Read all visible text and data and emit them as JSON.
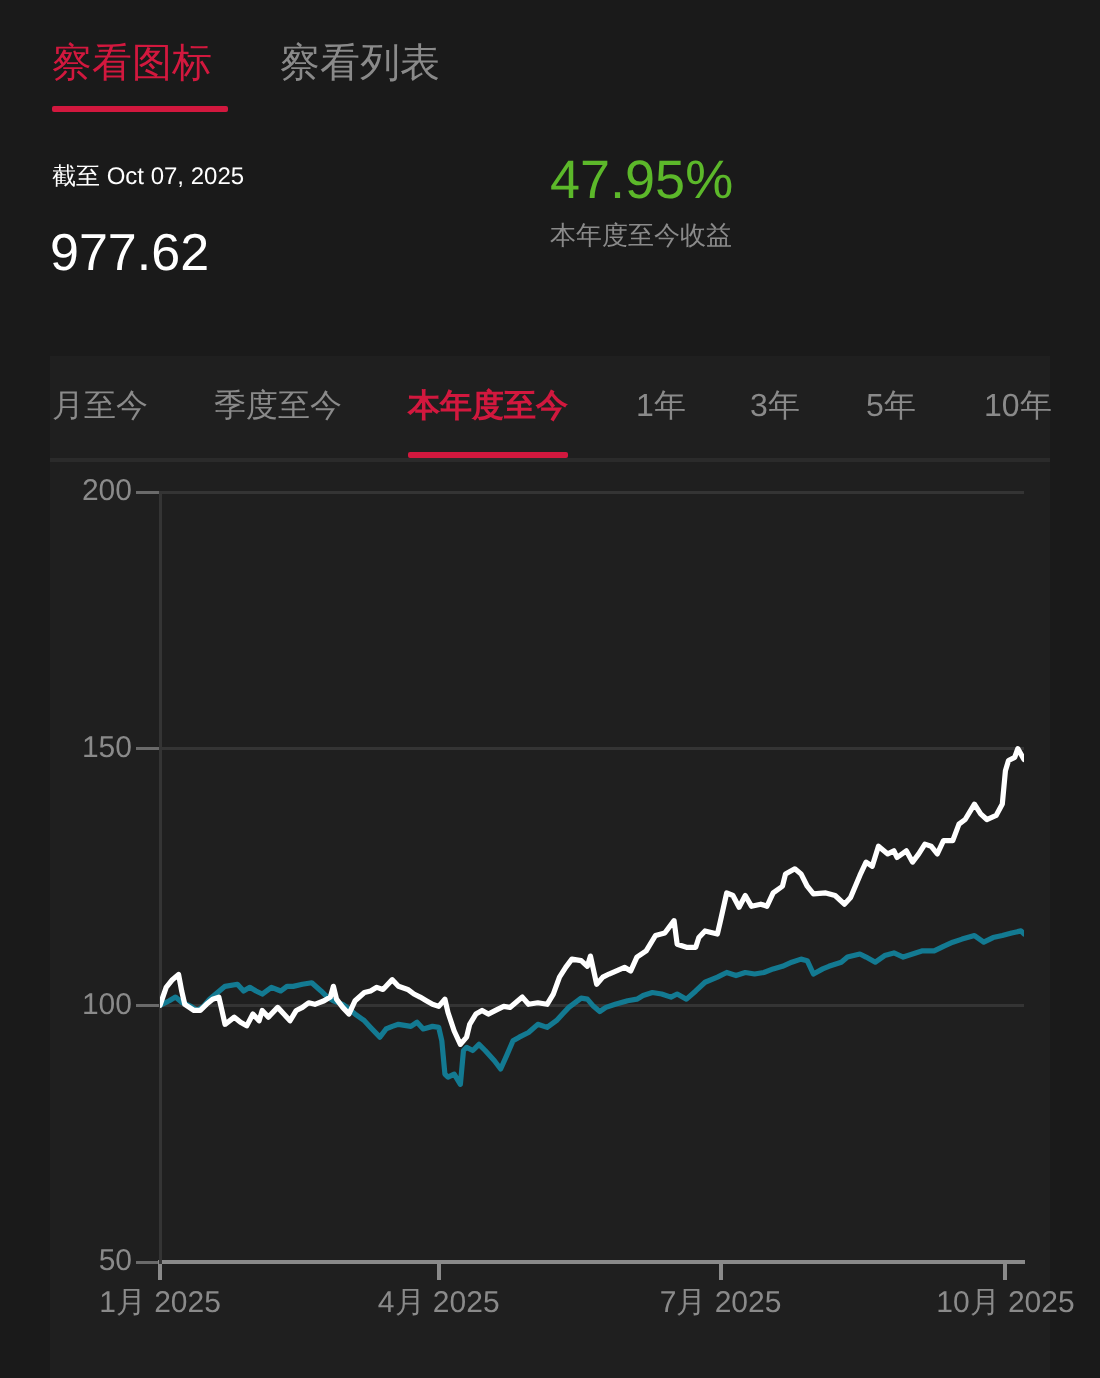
{
  "chart_data": {
    "type": "line",
    "annotations": [
      "察看图标",
      "察看列表",
      "截至 Oct 07, 2025",
      "977.62",
      "47.95%",
      "本年度至今收益",
      "月至今",
      "季度至今",
      "本年度至今",
      "1年",
      "3年",
      "5年",
      "10年"
    ],
    "xlim": [
      "2025-01-01",
      "2025-10-07"
    ],
    "xticks": [
      {
        "value": "2025-01-01",
        "label": "1月 2025"
      },
      {
        "value": "2025-04-01",
        "label": "4月 2025"
      },
      {
        "value": "2025-07-01",
        "label": "7月 2025"
      },
      {
        "value": "2025-10-01",
        "label": "10月 2025"
      }
    ],
    "ylim": [
      50,
      200
    ],
    "yticks": [
      50,
      100,
      150,
      200
    ],
    "grid": "y",
    "series": [
      {
        "color": "#ffffff",
        "x": [
          "2025-01-01",
          "2025-01-03",
          "2025-01-05",
          "2025-01-07",
          "2025-01-08",
          "2025-01-09",
          "2025-01-12",
          "2025-01-14",
          "2025-01-16",
          "2025-01-18",
          "2025-01-20",
          "2025-01-21",
          "2025-01-22",
          "2025-01-25",
          "2025-01-27",
          "2025-01-29",
          "2025-01-31",
          "2025-02-02",
          "2025-02-03",
          "2025-02-05",
          "2025-02-08",
          "2025-02-10",
          "2025-02-12",
          "2025-02-14",
          "2025-02-16",
          "2025-02-18",
          "2025-02-20",
          "2025-02-23",
          "2025-02-25",
          "2025-02-26",
          "2025-02-27",
          "2025-03-01",
          "2025-03-03",
          "2025-03-05",
          "2025-03-08",
          "2025-03-10",
          "2025-03-12",
          "2025-03-14",
          "2025-03-17",
          "2025-03-19",
          "2025-03-22",
          "2025-03-24",
          "2025-03-26",
          "2025-03-28",
          "2025-03-30",
          "2025-04-01",
          "2025-04-03",
          "2025-04-04",
          "2025-04-06",
          "2025-04-08",
          "2025-04-10",
          "2025-04-11",
          "2025-04-13",
          "2025-04-15",
          "2025-04-17",
          "2025-04-20",
          "2025-04-22",
          "2025-04-24",
          "2025-04-26",
          "2025-04-28",
          "2025-04-30",
          "2025-05-03",
          "2025-05-06",
          "2025-05-08",
          "2025-05-10",
          "2025-05-12",
          "2025-05-14",
          "2025-05-17",
          "2025-05-19",
          "2025-05-20",
          "2025-05-22",
          "2025-05-24",
          "2025-05-26",
          "2025-05-31",
          "2025-06-02",
          "2025-06-04",
          "2025-06-07",
          "2025-06-10",
          "2025-06-13",
          "2025-06-16",
          "2025-06-17",
          "2025-06-20",
          "2025-06-23",
          "2025-06-24",
          "2025-06-26",
          "2025-06-30",
          "2025-07-01",
          "2025-07-03",
          "2025-07-05",
          "2025-07-07",
          "2025-07-09",
          "2025-07-11",
          "2025-07-14",
          "2025-07-16",
          "2025-07-18",
          "2025-07-21",
          "2025-07-22",
          "2025-07-25",
          "2025-07-27",
          "2025-07-29",
          "2025-07-31",
          "2025-08-04",
          "2025-08-07",
          "2025-08-10",
          "2025-08-12",
          "2025-08-15",
          "2025-08-17",
          "2025-08-19",
          "2025-08-21",
          "2025-08-24",
          "2025-08-26",
          "2025-08-27",
          "2025-08-30",
          "2025-09-01",
          "2025-09-03",
          "2025-09-05",
          "2025-09-07",
          "2025-09-09",
          "2025-09-11",
          "2025-09-14",
          "2025-09-16",
          "2025-09-18",
          "2025-09-21",
          "2025-09-23",
          "2025-09-25",
          "2025-09-28",
          "2025-09-30",
          "2025-10-01",
          "2025-10-02",
          "2025-10-04",
          "2025-10-05",
          "2025-10-07"
        ],
        "values": [
          100,
          103.5,
          105,
          106,
          102.8,
          100.2,
          99,
          99,
          100.2,
          101.2,
          101.6,
          99,
          96.3,
          97.7,
          96.7,
          96,
          98.3,
          97,
          99,
          97.7,
          99.6,
          98.3,
          97,
          99,
          99.6,
          100.5,
          100.2,
          100.9,
          101.6,
          103.7,
          101.2,
          99.6,
          98.3,
          100.9,
          102.5,
          102.8,
          103.5,
          103.1,
          105,
          103.7,
          103.1,
          102.2,
          101.6,
          100.9,
          100.2,
          99.8,
          101.2,
          98.6,
          95,
          92.4,
          93.8,
          96.3,
          98.3,
          99,
          98.3,
          99.2,
          99.8,
          99.6,
          100.6,
          101.6,
          100.2,
          100.5,
          100.2,
          102.2,
          105.5,
          107.4,
          109,
          108.7,
          107.6,
          109.6,
          104.1,
          105.5,
          106.1,
          107.4,
          106.7,
          109.4,
          110.6,
          113.6,
          114.1,
          116.5,
          111.9,
          111.3,
          111.3,
          113.2,
          114.5,
          113.9,
          116.5,
          121.9,
          121.4,
          119.1,
          121.4,
          119.3,
          119.7,
          119.3,
          121.9,
          123.2,
          125.6,
          126.6,
          125.6,
          123.2,
          121.7,
          121.9,
          121.4,
          119.7,
          121,
          125.3,
          127.9,
          127.1,
          131,
          129.5,
          130.1,
          128.8,
          130.1,
          127.9,
          129.5,
          131.4,
          131,
          129.5,
          132.1,
          132.1,
          135.3,
          136.2,
          139.2,
          137.3,
          136.2,
          137,
          139.2,
          145.7,
          147.7,
          148.3,
          150,
          147.9
        ]
      },
      {
        "color": "#137a92",
        "x": [
          "2025-01-01",
          "2025-01-04",
          "2025-01-06",
          "2025-01-08",
          "2025-01-11",
          "2025-01-13",
          "2025-01-15",
          "2025-01-17",
          "2025-01-19",
          "2025-01-22",
          "2025-01-26",
          "2025-01-28",
          "2025-01-30",
          "2025-02-01",
          "2025-02-03",
          "2025-02-06",
          "2025-02-09",
          "2025-02-11",
          "2025-02-13",
          "2025-02-16",
          "2025-02-19",
          "2025-02-22",
          "2025-02-24",
          "2025-02-26",
          "2025-03-01",
          "2025-03-03",
          "2025-03-05",
          "2025-03-08",
          "2025-03-10",
          "2025-03-13",
          "2025-03-15",
          "2025-03-17",
          "2025-03-19",
          "2025-03-23",
          "2025-03-25",
          "2025-03-27",
          "2025-03-30",
          "2025-04-01",
          "2025-04-02",
          "2025-04-03",
          "2025-04-04",
          "2025-04-06",
          "2025-04-08",
          "2025-04-09",
          "2025-04-10",
          "2025-04-12",
          "2025-04-14",
          "2025-04-16",
          "2025-04-19",
          "2025-04-21",
          "2025-04-23",
          "2025-04-25",
          "2025-04-27",
          "2025-04-30",
          "2025-05-03",
          "2025-05-06",
          "2025-05-09",
          "2025-05-11",
          "2025-05-13",
          "2025-05-17",
          "2025-05-19",
          "2025-05-21",
          "2025-05-23",
          "2025-05-25",
          "2025-05-28",
          "2025-06-01",
          "2025-06-04",
          "2025-06-06",
          "2025-06-09",
          "2025-06-12",
          "2025-06-15",
          "2025-06-17",
          "2025-06-20",
          "2025-06-23",
          "2025-06-26",
          "2025-06-30",
          "2025-07-03",
          "2025-07-06",
          "2025-07-09",
          "2025-07-12",
          "2025-07-15",
          "2025-07-18",
          "2025-07-21",
          "2025-07-24",
          "2025-07-27",
          "2025-07-29",
          "2025-07-31",
          "2025-08-03",
          "2025-08-05",
          "2025-08-09",
          "2025-08-11",
          "2025-08-15",
          "2025-08-17",
          "2025-08-20",
          "2025-08-23",
          "2025-08-26",
          "2025-08-29",
          "2025-09-01",
          "2025-09-04",
          "2025-09-08",
          "2025-09-11",
          "2025-09-14",
          "2025-09-17",
          "2025-09-21",
          "2025-09-24",
          "2025-09-27",
          "2025-09-30",
          "2025-10-03",
          "2025-10-06",
          "2025-10-07"
        ],
        "values": [
          100,
          100.9,
          101.6,
          100.6,
          99.8,
          99,
          99.8,
          101.2,
          102.2,
          103.7,
          104.1,
          102.8,
          103.5,
          102.8,
          102.2,
          103.5,
          102.8,
          103.7,
          103.7,
          104.1,
          104.4,
          102.8,
          101.6,
          100.9,
          100.2,
          99.3,
          98.3,
          97,
          95.7,
          93.8,
          95.4,
          95.9,
          96.3,
          95.9,
          96.7,
          95.4,
          95.9,
          95.7,
          93.1,
          86.6,
          86,
          86.6,
          84.6,
          91.2,
          91.8,
          91.2,
          92.4,
          91.2,
          89.2,
          87.6,
          90.3,
          93.1,
          93.8,
          94.7,
          96.3,
          95.7,
          97,
          98.3,
          99.6,
          101.4,
          101.2,
          99.8,
          98.8,
          99.6,
          100.2,
          100.9,
          101.2,
          101.9,
          102.5,
          102.2,
          101.6,
          102.2,
          101.2,
          102.8,
          104.5,
          105.5,
          106.4,
          105.8,
          106.4,
          106.1,
          106.4,
          107.1,
          107.6,
          108.4,
          109,
          108.7,
          106.1,
          107.1,
          107.6,
          108.4,
          109.4,
          110,
          109.4,
          108.4,
          109.7,
          110.2,
          109.4,
          110,
          110.6,
          110.6,
          111.5,
          112.3,
          112.9,
          113.6,
          112.3,
          113.2,
          113.6,
          114.1,
          114.5,
          113.9
        ]
      }
    ]
  }
}
